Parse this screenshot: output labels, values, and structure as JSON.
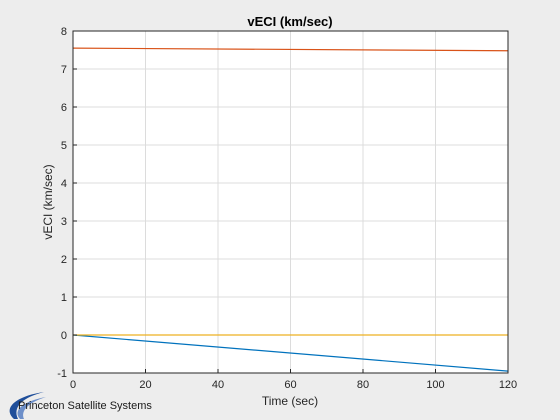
{
  "window": {
    "background": "#ededed"
  },
  "logo": {
    "text": "Princeton Satellite Systems",
    "color": "#1f4e9a"
  },
  "chart_data": {
    "type": "line",
    "title": "vECI (km/sec)",
    "xlabel": "Time (sec)",
    "ylabel": "vECI (km/sec)",
    "xlim": [
      0,
      120
    ],
    "ylim": [
      -1,
      8
    ],
    "xticks": [
      0,
      20,
      40,
      60,
      80,
      100,
      120
    ],
    "yticks": [
      -1,
      0,
      1,
      2,
      3,
      4,
      5,
      6,
      7,
      8
    ],
    "grid": true,
    "legend": "none",
    "series": [
      {
        "color": "#0072bd",
        "x": [
          0,
          120
        ],
        "y": [
          0.0,
          -0.95
        ]
      },
      {
        "color": "#d95319",
        "x": [
          0,
          120
        ],
        "y": [
          7.55,
          7.48
        ]
      },
      {
        "color": "#edb120",
        "x": [
          0,
          120
        ],
        "y": [
          0.0,
          0.0
        ]
      }
    ]
  }
}
